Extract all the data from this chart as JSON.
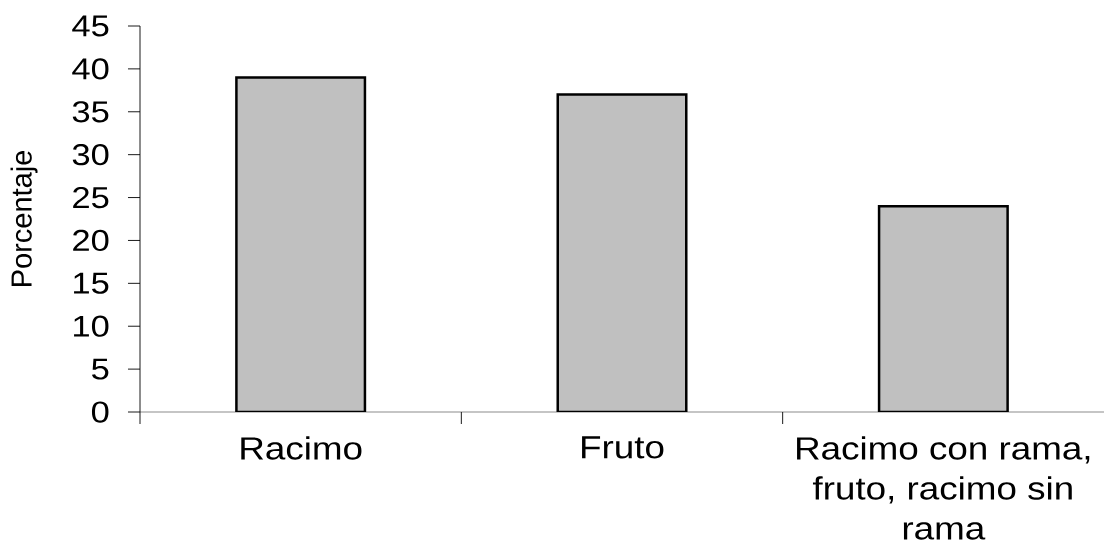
{
  "chart_data": {
    "type": "bar",
    "ylabel": "Porcentaje",
    "categories": [
      "Racimo",
      "Fruto",
      "Racimo con rama, fruto, racimo sin rama"
    ],
    "values": [
      39,
      37,
      24
    ],
    "color": "#c0c0c0",
    "ylim": [
      0,
      45
    ],
    "yticks": [
      0,
      5,
      10,
      15,
      20,
      25,
      30,
      35,
      40,
      45
    ]
  }
}
